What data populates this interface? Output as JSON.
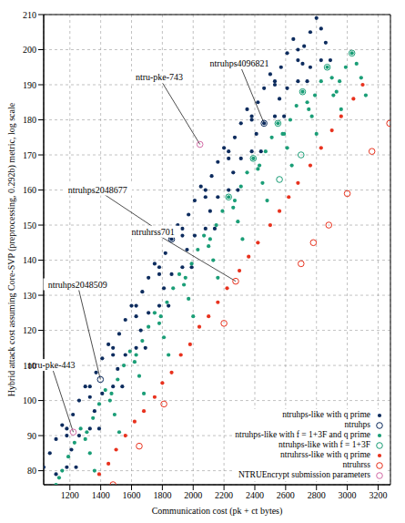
{
  "chart_data": {
    "type": "scatter",
    "x_label": "Communication cost (pk + ct bytes)",
    "y_label": "Hybrid attack cost assuming Core-SVP (preprocessing, 0.292b) metric, log scale",
    "xlim": [
      1030,
      3280
    ],
    "ylim": [
      76,
      210
    ],
    "xticks": [
      1200,
      1400,
      1600,
      1800,
      2000,
      2200,
      2400,
      2600,
      2800,
      3000,
      3200
    ],
    "yticks": [
      80,
      90,
      100,
      110,
      120,
      130,
      140,
      150,
      160,
      170,
      180,
      190,
      200,
      210
    ],
    "grid": true,
    "legend": "lower right",
    "series": [
      {
        "name": "ntruhps-like with q prime",
        "color": "#0d2c5e",
        "marker": "dot",
        "x": [
          1030,
          1070,
          1110,
          1150,
          1180,
          1210,
          1240,
          1110,
          1180,
          1180,
          1220,
          1260,
          1300,
          1330,
          1360,
          1390,
          1260,
          1330,
          1330,
          1370,
          1410,
          1450,
          1480,
          1510,
          1540,
          1410,
          1480,
          1480,
          1520,
          1560,
          1600,
          1630,
          1660,
          1690,
          1560,
          1630,
          1630,
          1670,
          1710,
          1750,
          1780,
          1810,
          1840,
          1710,
          1780,
          1780,
          1820,
          1860,
          1900,
          1930,
          1960,
          1990,
          1860,
          1930,
          1930,
          1970,
          2010,
          2050,
          2080,
          2110,
          2140,
          2010,
          2080,
          2080,
          2120,
          2160,
          2200,
          2230,
          2260,
          2290,
          2160,
          2230,
          2230,
          2270,
          2310,
          2350,
          2380,
          2410,
          2440,
          2310,
          2380,
          2380,
          2420,
          2460,
          2500,
          2530,
          2560,
          2590,
          2460,
          2530,
          2530,
          2570,
          2610,
          2650,
          2680,
          2710,
          2740,
          2610,
          2680,
          2680,
          2720,
          2760,
          2800,
          2830,
          2860,
          2890,
          2760,
          2830
        ],
        "values": [
          81,
          85,
          89,
          93,
          90,
          86,
          81,
          79,
          81,
          92,
          96,
          100,
          104,
          101,
          97,
          92,
          90,
          92,
          104,
          108,
          112,
          116,
          113,
          109,
          104,
          102,
          104,
          115,
          119,
          123,
          127,
          124,
          120,
          115,
          113,
          115,
          127,
          131,
          135,
          139,
          136,
          132,
          127,
          125,
          127,
          138,
          142,
          146,
          150,
          147,
          143,
          138,
          136,
          138,
          149,
          153,
          157,
          161,
          158,
          154,
          149,
          147,
          149,
          160,
          164,
          168,
          172,
          169,
          165,
          160,
          158,
          160,
          171,
          175,
          179,
          183,
          180,
          176,
          171,
          169,
          171,
          181,
          185,
          189,
          193,
          190,
          186,
          181,
          179,
          181,
          191,
          195,
          199,
          203,
          200,
          196,
          191,
          189,
          191,
          197,
          201,
          205,
          209,
          206,
          202,
          197,
          195,
          197
        ]
      },
      {
        "name": "ntruhps",
        "color": "#0d2c5e",
        "marker": "ring",
        "x": [
          1398,
          1860,
          2460
        ],
        "values": [
          106,
          146,
          179
        ]
      },
      {
        "name": "ntruhps-like with f = 1+3F and q prime",
        "color": "#1b9e77",
        "marker": "dot",
        "x": [
          1110,
          1130,
          1150,
          1190,
          1230,
          1270,
          1300,
          1330,
          1360,
          1310,
          1350,
          1390,
          1430,
          1460,
          1490,
          1520,
          1470,
          1510,
          1550,
          1590,
          1620,
          1650,
          1680,
          1630,
          1670,
          1710,
          1750,
          1780,
          1810,
          1840,
          1790,
          1830,
          1870,
          1910,
          1940,
          1970,
          2000,
          1950,
          1990,
          2030,
          2070,
          2100,
          2130,
          2160,
          2110,
          2150,
          2190,
          2230,
          2260,
          2290,
          2320,
          2270,
          2310,
          2350,
          2390,
          2420,
          2450,
          2480,
          2430,
          2470,
          2510,
          2550,
          2580,
          2610,
          2640,
          2590,
          2630,
          2670,
          2710,
          2740,
          2770,
          2800,
          2750,
          2790,
          2830,
          2870,
          2900,
          2930,
          2960,
          2910,
          2950,
          2990,
          3030,
          3060,
          3090,
          3120
        ],
        "values": [
          76,
          78,
          80,
          84,
          88,
          92,
          89,
          85,
          80,
          91,
          95,
          99,
          103,
          100,
          96,
          91,
          102,
          106,
          110,
          114,
          111,
          107,
          102,
          113,
          117,
          121,
          125,
          122,
          118,
          113,
          124,
          128,
          132,
          136,
          133,
          129,
          124,
          135,
          139,
          143,
          147,
          144,
          140,
          135,
          146,
          150,
          154,
          158,
          155,
          151,
          146,
          157,
          161,
          165,
          169,
          166,
          162,
          157,
          167,
          171,
          175,
          179,
          176,
          172,
          167,
          176,
          180,
          184,
          188,
          185,
          181,
          176,
          183,
          187,
          191,
          195,
          192,
          188,
          183,
          187,
          191,
          195,
          199,
          196,
          192,
          187
        ]
      },
      {
        "name": "ntruhps-like with f = 1+3F",
        "color": "#1b9e77",
        "marker": "ring",
        "x": [
          2230,
          2390,
          2550,
          2710,
          2870,
          3030,
          2560,
          2700
        ],
        "values": [
          158,
          169,
          179,
          188,
          195,
          199,
          163,
          170
        ]
      },
      {
        "name": "ntruhrss-like with q prime",
        "color": "#e8321e",
        "marker": "dot",
        "x": [
          1390,
          1450,
          1500,
          1560,
          1620,
          1680,
          1750,
          1800,
          1860,
          1920,
          1980,
          2040,
          2100,
          2160,
          2220,
          2300,
          2360,
          2420,
          2500,
          2560,
          2620,
          2680,
          2760,
          2830,
          2900,
          2960,
          3040,
          3100
        ],
        "values": [
          79,
          82,
          86,
          90,
          94,
          97,
          101,
          105,
          108,
          113,
          116,
          121,
          124,
          128,
          132,
          137,
          141,
          145,
          150,
          154,
          158,
          162,
          167,
          172,
          177,
          181,
          186,
          190
        ]
      },
      {
        "name": "ntruhrss",
        "color": "#e8321e",
        "marker": "ring",
        "x": [
          1480,
          1650,
          1810,
          2200,
          2276,
          2700,
          2780,
          2880,
          3000,
          3160,
          3275
        ],
        "values": [
          76,
          87,
          99,
          122,
          134,
          139,
          145,
          150,
          159,
          171,
          179
        ]
      },
      {
        "name": "NTRUEncrypt submission parameters",
        "color": "#d36ba6",
        "marker": "ring",
        "x": [
          1222,
          2044
        ],
        "values": [
          91,
          173
        ]
      }
    ],
    "annotations": [
      {
        "text": "ntru-pke-443",
        "x": 1222,
        "y": 91,
        "text_x": 1080,
        "text_y": 110
      },
      {
        "text": "ntruhps2048509",
        "x": 1398,
        "y": 106,
        "text_x": 1250,
        "text_y": 133
      },
      {
        "text": "ntruhps2048677",
        "x": 1860,
        "y": 146,
        "text_x": 1380,
        "text_y": 160
      },
      {
        "text": "ntruhrss701",
        "x": 2276,
        "y": 134,
        "text_x": 1740,
        "text_y": 148
      },
      {
        "text": "ntruhps4096821",
        "x": 2460,
        "y": 179,
        "text_x": 2300,
        "text_y": 196
      },
      {
        "text": "ntru-pke-743",
        "x": 2044,
        "y": 173,
        "text_x": 1780,
        "text_y": 192
      }
    ]
  }
}
